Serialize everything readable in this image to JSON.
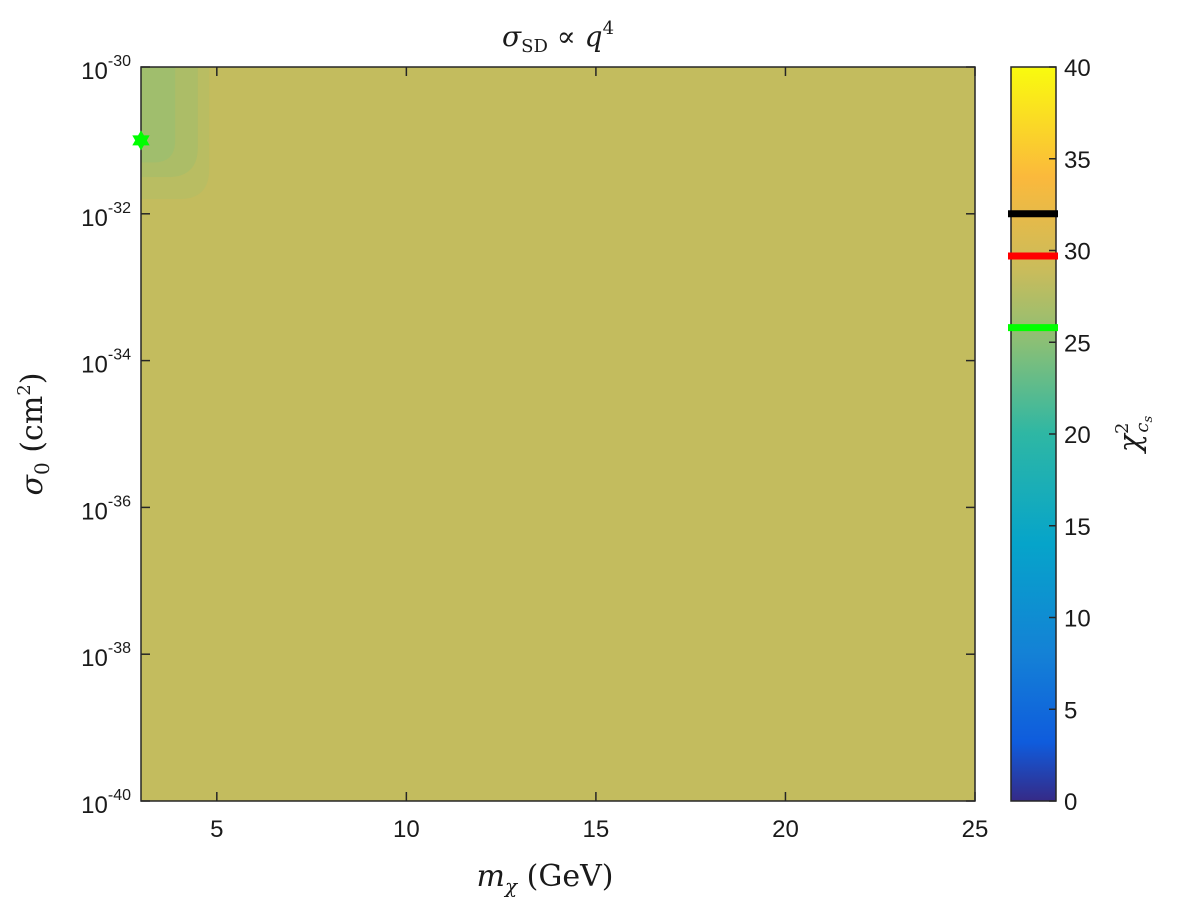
{
  "chart_data": {
    "type": "heatmap",
    "title": "σSD ∝ q4",
    "xlabel": "mχ (GeV)",
    "ylabel": "σ0 (cm2)",
    "x_scale": "linear",
    "y_scale": "log",
    "xlim": [
      3,
      25
    ],
    "ylim": [
      1e-40,
      1e-30
    ],
    "x_ticks": [
      5,
      10,
      15,
      20,
      25
    ],
    "x_tick_labels": [
      "5",
      "10",
      "15",
      "20",
      "25"
    ],
    "y_ticks": [
      -40,
      -38,
      -36,
      -34,
      -32,
      -30
    ],
    "y_tick_labels": [
      {
        "base": "10",
        "exp": "-40"
      },
      {
        "base": "10",
        "exp": "-38"
      },
      {
        "base": "10",
        "exp": "-36"
      },
      {
        "base": "10",
        "exp": "-34"
      },
      {
        "base": "10",
        "exp": "-32"
      },
      {
        "base": "10",
        "exp": "-30"
      }
    ],
    "background_value": 28.5,
    "contours": [
      {
        "x_max": 4.8,
        "log_y_min": -31.8,
        "value": 27.8
      },
      {
        "x_max": 4.5,
        "log_y_min": -31.5,
        "value": 27.0
      },
      {
        "x_max": 3.9,
        "log_y_min": -31.3,
        "value": 26.2
      }
    ],
    "best_fit": {
      "x": 3.0,
      "log_y": -31.0,
      "color": "#00ff00"
    },
    "colorbar": {
      "label": "χ2cs",
      "range": [
        0,
        40
      ],
      "ticks": [
        0,
        5,
        10,
        15,
        20,
        25,
        30,
        35,
        40
      ],
      "tick_labels": [
        "0",
        "5",
        "10",
        "15",
        "20",
        "25",
        "30",
        "35",
        "40"
      ],
      "markers": [
        {
          "value": 32.0,
          "color": "#000000"
        },
        {
          "value": 29.7,
          "color": "#ff0000"
        },
        {
          "value": 25.8,
          "color": "#00ff00"
        }
      ]
    },
    "grid": false,
    "legend": "none"
  }
}
